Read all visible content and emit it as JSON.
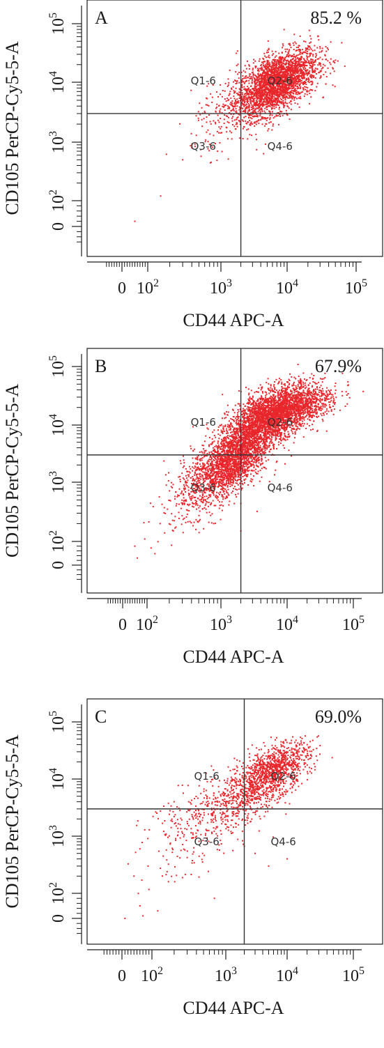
{
  "colors": {
    "dots": "#e8262b",
    "axes": "#1a1a1a",
    "gate": "#333333",
    "background": "#ffffff"
  },
  "chart_data": [
    {
      "type": "scatter",
      "panel_label": "A",
      "percent_label": "85.2 %",
      "xlabel": "CD44 APC-A",
      "ylabel": "CD105 PerCP-Cy5-5-A",
      "x_ticks": [
        "0",
        "10^2",
        "10^3",
        "10^4",
        "10^5"
      ],
      "y_ticks": [
        "0",
        "10^2",
        "10^3",
        "10^4",
        "10^5"
      ],
      "x_scale": "biexponential",
      "y_scale": "biexponential",
      "gate": {
        "x": 2000,
        "y": 3000
      },
      "quadrants": [
        "Q1-6",
        "Q2-6",
        "Q3-6",
        "Q4-6"
      ],
      "populations": [
        {
          "center": [
            7000,
            10000
          ],
          "spread_decades": [
            0.3,
            0.28
          ],
          "n": 2600
        },
        {
          "center": [
            2500,
            4000
          ],
          "spread_decades": [
            0.4,
            0.35
          ],
          "n": 350
        }
      ],
      "outliers": [
        [
          150,
          120
        ],
        [
          50,
          20
        ],
        [
          400,
          800
        ],
        [
          300,
          500
        ],
        [
          900,
          700
        ]
      ],
      "grid": false,
      "legend": "none"
    },
    {
      "type": "scatter",
      "panel_label": "B",
      "percent_label": "67.9%",
      "xlabel": "CD44 APC-A",
      "ylabel": "CD105 PerCP-Cy5-5-A",
      "x_ticks": [
        "0",
        "10^2",
        "10^3",
        "10^4",
        "10^5"
      ],
      "y_ticks": [
        "0",
        "10^2",
        "10^3",
        "10^4",
        "10^5"
      ],
      "x_scale": "biexponential",
      "y_scale": "biexponential",
      "gate": {
        "x": 2000,
        "y": 3000
      },
      "quadrants": [
        "Q1-6",
        "Q2-6",
        "Q3-6",
        "Q4-6"
      ],
      "populations": [
        {
          "center": [
            6000,
            15000
          ],
          "spread_decades": [
            0.32,
            0.25
          ],
          "n": 2800
        },
        {
          "center": [
            1500,
            2500
          ],
          "spread_decades": [
            0.28,
            0.3
          ],
          "n": 2000
        },
        {
          "center": [
            20000,
            20000
          ],
          "spread_decades": [
            0.25,
            0.18
          ],
          "n": 400
        },
        {
          "center": [
            600,
            800
          ],
          "spread_decades": [
            0.3,
            0.35
          ],
          "n": 400
        }
      ],
      "outliers": [
        [
          50,
          80
        ],
        [
          60,
          30
        ],
        [
          150,
          200
        ],
        [
          800,
          200
        ],
        [
          2000,
          150
        ]
      ],
      "grid": false,
      "legend": "none"
    },
    {
      "type": "scatter",
      "panel_label": "C",
      "percent_label": "69.0%",
      "xlabel": "CD44 APC-A",
      "ylabel": "CD105 PerCP-Cy5-5-A",
      "x_ticks": [
        "0",
        "10^2",
        "10^3",
        "10^4",
        "10^5"
      ],
      "y_ticks": [
        "0",
        "10^2",
        "10^3",
        "10^4",
        "10^5"
      ],
      "x_scale": "biexponential",
      "y_scale": "biexponential",
      "gate": {
        "x": 2000,
        "y": 3000
      },
      "quadrants": [
        "Q1-6",
        "Q2-6",
        "Q3-6",
        "Q4-6"
      ],
      "populations": [
        {
          "center": [
            6000,
            14000
          ],
          "spread_decades": [
            0.28,
            0.24
          ],
          "n": 1000
        },
        {
          "center": [
            1800,
            5000
          ],
          "spread_decades": [
            0.4,
            0.3
          ],
          "n": 500
        },
        {
          "center": [
            500,
            1500
          ],
          "spread_decades": [
            0.45,
            0.45
          ],
          "n": 250
        }
      ],
      "outliers": [
        [
          40,
          200
        ],
        [
          60,
          50
        ],
        [
          70,
          10
        ],
        [
          10,
          0
        ],
        [
          120,
          30
        ],
        [
          700,
          80
        ],
        [
          5000,
          300
        ],
        [
          10000,
          400
        ],
        [
          3000,
          500
        ]
      ],
      "grid": false,
      "legend": "none"
    }
  ]
}
